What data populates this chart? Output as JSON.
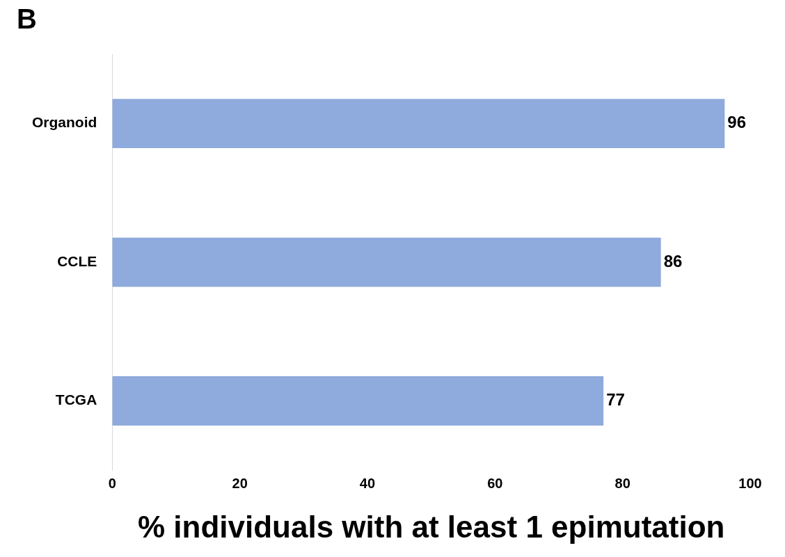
{
  "chart_data": {
    "type": "bar",
    "orientation": "horizontal",
    "title": "B",
    "xlabel": "% individuals with at least 1 epimutation",
    "categories": [
      "Organoid",
      "CCLE",
      "TCGA"
    ],
    "values": [
      96,
      86,
      77
    ],
    "color": "#8faadc",
    "xlim": [
      0,
      100
    ],
    "xticks": [
      0,
      20,
      40,
      60,
      80,
      100
    ],
    "grid": false,
    "legend": false,
    "data_labels": true
  }
}
